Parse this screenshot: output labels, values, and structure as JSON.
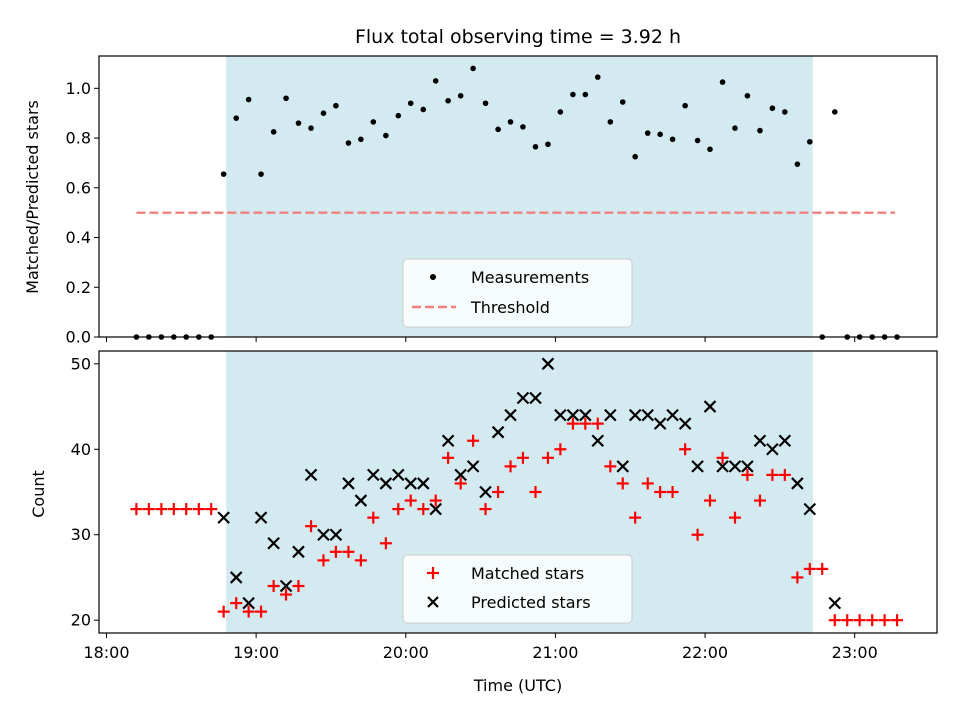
{
  "chart_data": [
    {
      "type": "scatter",
      "title": "Flux total observing time = 3.92 h",
      "ylabel": "Matched/Predicted stars",
      "ylim": [
        0,
        1.13
      ],
      "yticks": [
        "0.0",
        "0.2",
        "0.4",
        "0.6",
        "0.8",
        "1.0"
      ],
      "shaded_region": {
        "x_start": 18.8,
        "x_end": 22.72,
        "color": "#d3eaf1"
      },
      "threshold": {
        "name": "Threshold",
        "value": 0.5,
        "x_start": 18.2,
        "x_end": 23.27,
        "color": "#f08080"
      },
      "legend": {
        "location": "lower-center",
        "entries": [
          "Measurements",
          "Threshold"
        ]
      },
      "series": [
        {
          "name": "Measurements",
          "marker": "dot",
          "color": "#000000",
          "x": [
            18.2,
            18.283,
            18.367,
            18.45,
            18.533,
            18.617,
            18.7,
            18.783,
            18.867,
            18.95,
            19.033,
            19.117,
            19.2,
            19.283,
            19.367,
            19.45,
            19.533,
            19.617,
            19.7,
            19.783,
            19.867,
            19.95,
            20.033,
            20.117,
            20.2,
            20.283,
            20.367,
            20.45,
            20.533,
            20.617,
            20.7,
            20.783,
            20.867,
            20.95,
            21.033,
            21.117,
            21.2,
            21.283,
            21.367,
            21.45,
            21.533,
            21.617,
            21.7,
            21.783,
            21.867,
            21.95,
            22.033,
            22.117,
            22.2,
            22.283,
            22.367,
            22.45,
            22.533,
            22.617,
            22.7,
            22.783,
            22.867,
            22.95,
            23.033,
            23.117,
            23.2,
            23.283
          ],
          "y": [
            0,
            0,
            0,
            0,
            0,
            0,
            0,
            0.655,
            0.88,
            0.955,
            0.655,
            0.825,
            0.96,
            0.86,
            0.84,
            0.9,
            0.93,
            0.78,
            0.795,
            0.865,
            0.81,
            0.89,
            0.94,
            0.915,
            1.03,
            0.95,
            0.97,
            1.08,
            0.94,
            0.835,
            0.865,
            0.845,
            0.765,
            0.775,
            0.905,
            0.975,
            0.975,
            1.045,
            0.865,
            0.945,
            0.725,
            0.82,
            0.815,
            0.795,
            0.93,
            0.79,
            0.755,
            1.025,
            0.84,
            0.97,
            0.83,
            0.92,
            0.905,
            0.695,
            0.785,
            0,
            0.905,
            0,
            0,
            0,
            0,
            0
          ]
        }
      ]
    },
    {
      "type": "scatter",
      "xlabel": "Time (UTC)",
      "ylabel": "Count",
      "xlim": [
        17.95,
        23.55
      ],
      "ylim": [
        18.5,
        51.5
      ],
      "xticks": [
        "18:00",
        "19:00",
        "20:00",
        "21:00",
        "22:00",
        "23:00"
      ],
      "yticks": [
        "20",
        "30",
        "40",
        "50"
      ],
      "shaded_region": {
        "x_start": 18.8,
        "x_end": 22.72,
        "color": "#d3eaf1"
      },
      "legend": {
        "location": "lower-center",
        "entries": [
          "Matched stars",
          "Predicted stars"
        ]
      },
      "series": [
        {
          "name": "Matched stars",
          "marker": "plus",
          "color": "#ff0000",
          "x": [
            18.2,
            18.283,
            18.367,
            18.45,
            18.533,
            18.617,
            18.7,
            18.783,
            18.867,
            18.95,
            19.033,
            19.117,
            19.2,
            19.283,
            19.367,
            19.45,
            19.533,
            19.617,
            19.7,
            19.783,
            19.867,
            19.95,
            20.033,
            20.117,
            20.2,
            20.283,
            20.367,
            20.45,
            20.533,
            20.617,
            20.7,
            20.783,
            20.867,
            20.95,
            21.033,
            21.117,
            21.2,
            21.283,
            21.367,
            21.45,
            21.533,
            21.617,
            21.7,
            21.783,
            21.867,
            21.95,
            22.033,
            22.117,
            22.2,
            22.283,
            22.367,
            22.45,
            22.533,
            22.617,
            22.7,
            22.783,
            22.867,
            22.95,
            23.033,
            23.117,
            23.2,
            23.283
          ],
          "y": [
            33,
            33,
            33,
            33,
            33,
            33,
            33,
            21,
            22,
            21,
            21,
            24,
            23,
            24,
            31,
            27,
            28,
            28,
            27,
            32,
            29,
            33,
            34,
            33,
            34,
            39,
            36,
            41,
            33,
            35,
            38,
            39,
            35,
            39,
            40,
            43,
            43,
            43,
            38,
            36,
            32,
            36,
            35,
            35,
            40,
            30,
            34,
            39,
            32,
            37,
            34,
            37,
            37,
            25,
            26,
            26,
            20,
            20,
            20,
            20,
            20,
            20
          ]
        },
        {
          "name": "Predicted stars",
          "marker": "x",
          "color": "#000000",
          "x": [
            18.783,
            18.867,
            18.95,
            19.033,
            19.117,
            19.2,
            19.283,
            19.367,
            19.45,
            19.533,
            19.617,
            19.7,
            19.783,
            19.867,
            19.95,
            20.033,
            20.117,
            20.2,
            20.283,
            20.367,
            20.45,
            20.533,
            20.617,
            20.7,
            20.783,
            20.867,
            20.95,
            21.033,
            21.117,
            21.2,
            21.283,
            21.367,
            21.45,
            21.533,
            21.617,
            21.7,
            21.783,
            21.867,
            21.95,
            22.033,
            22.117,
            22.2,
            22.283,
            22.367,
            22.45,
            22.533,
            22.617,
            22.7,
            22.867
          ],
          "y": [
            32,
            25,
            22,
            32,
            29,
            24,
            28,
            37,
            30,
            30,
            36,
            34,
            37,
            36,
            37,
            36,
            36,
            33,
            41,
            37,
            38,
            35,
            42,
            44,
            46,
            46,
            50,
            44,
            44,
            44,
            41,
            44,
            38,
            44,
            44,
            43,
            44,
            43,
            38,
            45,
            38,
            38,
            38,
            41,
            40,
            41,
            36,
            33,
            22
          ]
        }
      ]
    }
  ]
}
